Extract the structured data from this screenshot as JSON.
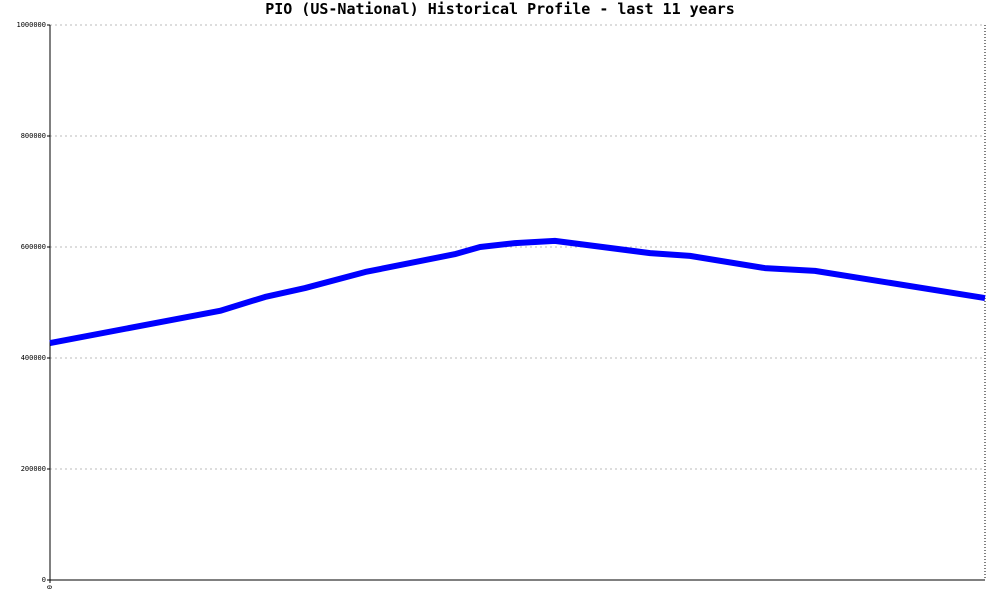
{
  "chart_data": {
    "type": "line",
    "title": "PIO (US-National) Historical Profile - last 11 years",
    "x": [
      0,
      2.0,
      2.53,
      3.0,
      3.71,
      4.76,
      5.06,
      5.47,
      5.94,
      7.06,
      7.53,
      8.41,
      9.0,
      11
    ],
    "series": [
      {
        "color": "#0000ff",
        "values": [
          427000,
          485000,
          510000,
          526000,
          555000,
          587000,
          600000,
          607000,
          611000,
          589000,
          584000,
          562000,
          557000,
          508000
        ]
      }
    ],
    "xlim": [
      0,
      11
    ],
    "xticks": [
      0
    ],
    "ylim": [
      0,
      1000000
    ],
    "yticks": [
      0,
      200000,
      400000,
      600000,
      800000,
      1000000
    ],
    "grid": true
  }
}
